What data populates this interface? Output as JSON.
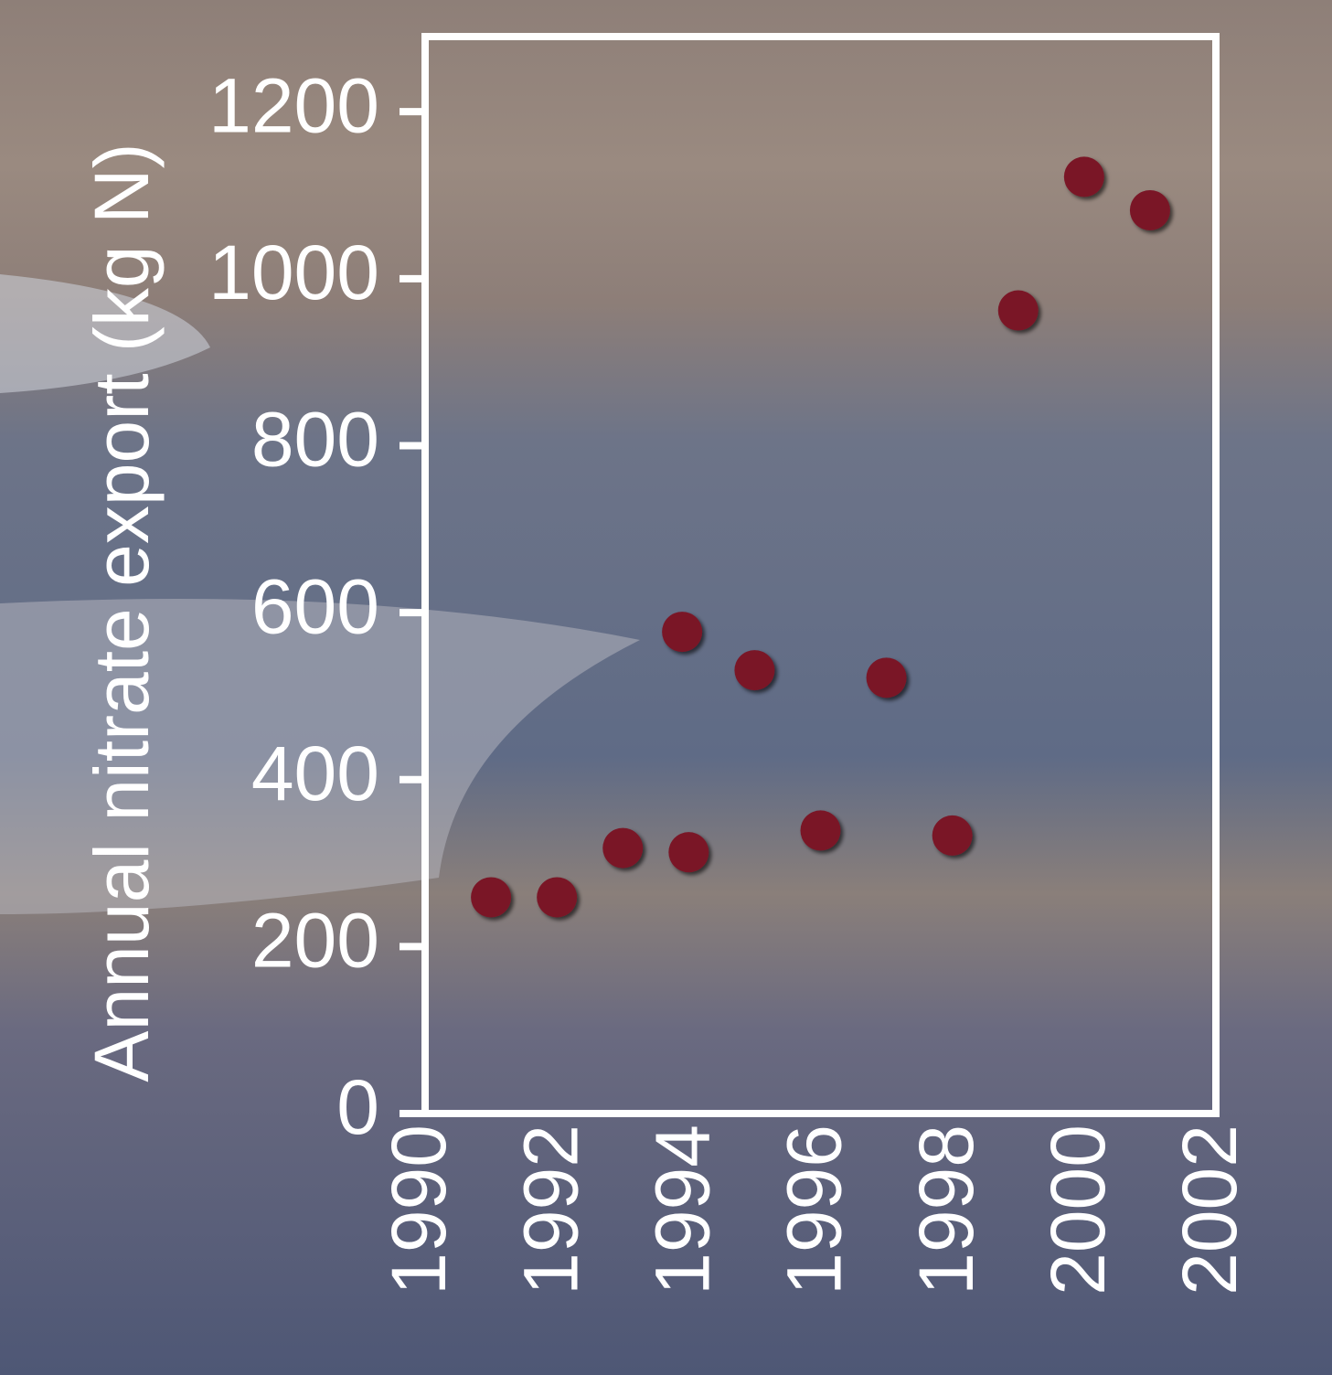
{
  "chart_data": {
    "type": "scatter",
    "y_label": "Annual nitrate export (kg N)",
    "x": [
      1991,
      1992,
      1993,
      1993.9,
      1994,
      1995,
      1996,
      1997,
      1998,
      1999,
      2000,
      2001
    ],
    "values": [
      259,
      259,
      318,
      577,
      313,
      531,
      339,
      522,
      333,
      962,
      1122,
      1082
    ],
    "color": "#7a1628",
    "xlim": [
      1990,
      2002
    ],
    "xticks": [
      1990,
      1992,
      1994,
      1996,
      1998,
      2000,
      2002
    ],
    "ylim": [
      0,
      1290
    ],
    "yticks": [
      0,
      200,
      400,
      600,
      800,
      1000,
      1200
    ]
  }
}
